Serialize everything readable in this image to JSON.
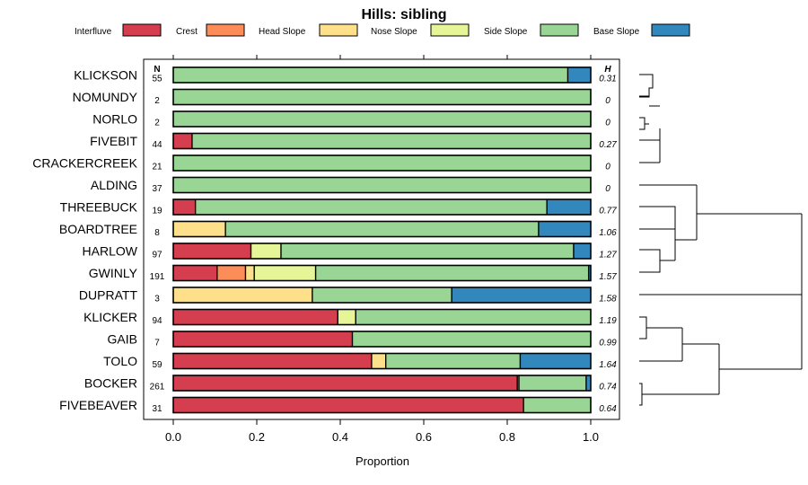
{
  "chart_data": {
    "type": "bar",
    "orientation": "horizontal",
    "stacked": true,
    "title": "Hills: sibling",
    "xlabel": "Proportion",
    "xlim": [
      0,
      1
    ],
    "xticks": [
      "0.0",
      "0.2",
      "0.4",
      "0.6",
      "0.8",
      "1.0"
    ],
    "n_header": "N",
    "h_header": "H",
    "legend": [
      {
        "name": "Interfluve",
        "color": "#d53e4f"
      },
      {
        "name": "Crest",
        "color": "#fc8d59"
      },
      {
        "name": "Head Slope",
        "color": "#fee08b"
      },
      {
        "name": "Nose Slope",
        "color": "#e6f598"
      },
      {
        "name": "Side Slope",
        "color": "#99d594"
      },
      {
        "name": "Base Slope",
        "color": "#3288bd"
      }
    ],
    "rows": [
      {
        "label": "KLICKSON",
        "n": "55",
        "h": "0.31",
        "values": [
          0,
          0,
          0,
          0,
          0.945,
          0.055
        ]
      },
      {
        "label": "NOMUNDY",
        "n": "2",
        "h": "0",
        "values": [
          0,
          0,
          0,
          0,
          1.0,
          0
        ]
      },
      {
        "label": "NORLO",
        "n": "2",
        "h": "0",
        "values": [
          0,
          0,
          0,
          0,
          1.0,
          0
        ]
      },
      {
        "label": "FIVEBIT",
        "n": "44",
        "h": "0.27",
        "values": [
          0.045,
          0,
          0,
          0,
          0.955,
          0
        ]
      },
      {
        "label": "CRACKERCREEK",
        "n": "21",
        "h": "0",
        "values": [
          0,
          0,
          0,
          0,
          1.0,
          0
        ]
      },
      {
        "label": "ALDING",
        "n": "37",
        "h": "0",
        "values": [
          0,
          0,
          0,
          0,
          1.0,
          0
        ]
      },
      {
        "label": "THREEBUCK",
        "n": "19",
        "h": "0.77",
        "values": [
          0.053,
          0,
          0,
          0,
          0.842,
          0.105
        ]
      },
      {
        "label": "BOARDTREE",
        "n": "8",
        "h": "1.06",
        "values": [
          0,
          0,
          0.125,
          0,
          0.75,
          0.125
        ]
      },
      {
        "label": "HARLOW",
        "n": "97",
        "h": "1.27",
        "values": [
          0.186,
          0,
          0,
          0.072,
          0.701,
          0.041
        ]
      },
      {
        "label": "GWINLY",
        "n": "191",
        "h": "1.57",
        "values": [
          0.105,
          0.068,
          0.021,
          0.147,
          0.654,
          0.005
        ]
      },
      {
        "label": "DUPRATT",
        "n": "3",
        "h": "1.58",
        "values": [
          0,
          0,
          0.333,
          0,
          0.334,
          0.333
        ]
      },
      {
        "label": "KLICKER",
        "n": "94",
        "h": "1.19",
        "values": [
          0.394,
          0,
          0,
          0.043,
          0.563,
          0
        ]
      },
      {
        "label": "GAIB",
        "n": "7",
        "h": "0.99",
        "values": [
          0.429,
          0,
          0,
          0,
          0.571,
          0
        ]
      },
      {
        "label": "TOLO",
        "n": "59",
        "h": "1.64",
        "values": [
          0.475,
          0,
          0.034,
          0,
          0.322,
          0.169
        ]
      },
      {
        "label": "BOCKER",
        "n": "261",
        "h": "0.74",
        "values": [
          0.824,
          0.004,
          0,
          0,
          0.161,
          0.011
        ]
      },
      {
        "label": "FIVEBEAVER",
        "n": "31",
        "h": "0.64",
        "values": [
          0.839,
          0,
          0,
          0,
          0.161,
          0
        ]
      }
    ],
    "dendrogram": "hierarchical clustering of rows shown at right"
  }
}
